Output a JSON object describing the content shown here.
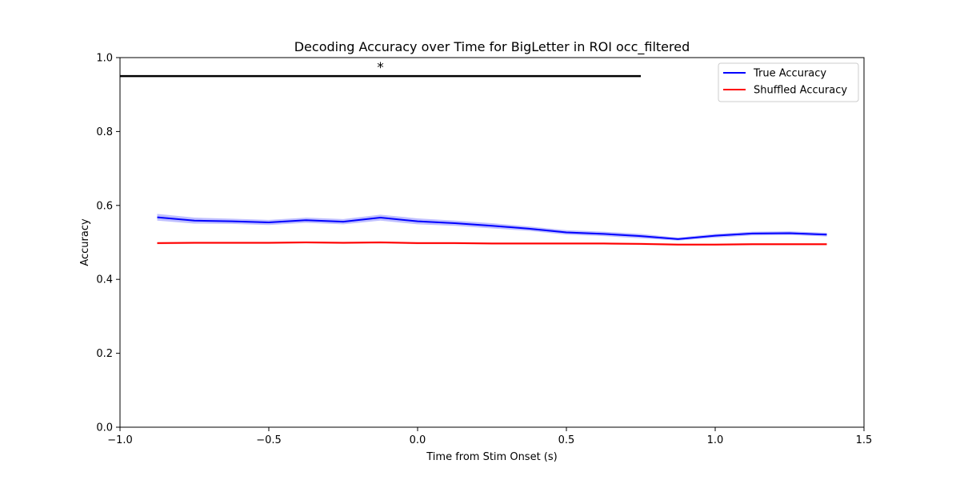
{
  "chart_data": {
    "type": "line",
    "title": "Decoding Accuracy over Time for BigLetter in ROI occ_filtered",
    "xlabel": "Time from Stim Onset (s)",
    "ylabel": "Accuracy",
    "xlim": [
      -1.0,
      1.5
    ],
    "ylim": [
      0.0,
      1.0
    ],
    "xticks": [
      -1.0,
      -0.5,
      0.0,
      0.5,
      1.0,
      1.5
    ],
    "xtick_labels": [
      "−1.0",
      "−0.5",
      "0.0",
      "0.5",
      "1.0",
      "1.5"
    ],
    "yticks": [
      0.0,
      0.2,
      0.4,
      0.6,
      0.8,
      1.0
    ],
    "ytick_labels": [
      "0.0",
      "0.2",
      "0.4",
      "0.6",
      "0.8",
      "1.0"
    ],
    "grid": false,
    "legend_position": "top-right",
    "x": [
      -0.875,
      -0.75,
      -0.625,
      -0.5,
      -0.375,
      -0.25,
      -0.125,
      0.0,
      0.125,
      0.25,
      0.375,
      0.5,
      0.625,
      0.75,
      0.875,
      1.0,
      1.125,
      1.25,
      1.375
    ],
    "series": [
      {
        "name": "True Accuracy",
        "color": "#0000ff",
        "band_color": "#7f7fff",
        "values": [
          0.568,
          0.559,
          0.557,
          0.554,
          0.56,
          0.556,
          0.567,
          0.557,
          0.552,
          0.545,
          0.537,
          0.527,
          0.523,
          0.517,
          0.509,
          0.518,
          0.524,
          0.525,
          0.521
        ],
        "lower": [
          0.559,
          0.551,
          0.55,
          0.547,
          0.553,
          0.549,
          0.559,
          0.549,
          0.545,
          0.538,
          0.531,
          0.521,
          0.517,
          0.511,
          0.505,
          0.513,
          0.519,
          0.52,
          0.516
        ],
        "upper": [
          0.577,
          0.567,
          0.564,
          0.561,
          0.567,
          0.563,
          0.575,
          0.565,
          0.559,
          0.552,
          0.543,
          0.533,
          0.529,
          0.523,
          0.513,
          0.523,
          0.529,
          0.53,
          0.526
        ]
      },
      {
        "name": "Shuffled Accuracy",
        "color": "#ff0000",
        "band_color": "#ff7f7f",
        "values": [
          0.498,
          0.499,
          0.499,
          0.499,
          0.5,
          0.499,
          0.5,
          0.498,
          0.498,
          0.497,
          0.497,
          0.497,
          0.497,
          0.496,
          0.494,
          0.494,
          0.495,
          0.495,
          0.495
        ],
        "lower": [
          0.495,
          0.496,
          0.496,
          0.496,
          0.497,
          0.496,
          0.497,
          0.495,
          0.495,
          0.494,
          0.494,
          0.494,
          0.494,
          0.493,
          0.491,
          0.491,
          0.492,
          0.492,
          0.492
        ],
        "upper": [
          0.501,
          0.502,
          0.502,
          0.502,
          0.503,
          0.502,
          0.503,
          0.501,
          0.501,
          0.5,
          0.5,
          0.5,
          0.5,
          0.499,
          0.497,
          0.497,
          0.498,
          0.498,
          0.498
        ]
      }
    ],
    "significance": {
      "x_start": -1.0,
      "x_end": 0.75,
      "y": 0.95,
      "color": "#000000",
      "marker": "*",
      "marker_x": -0.125
    }
  }
}
